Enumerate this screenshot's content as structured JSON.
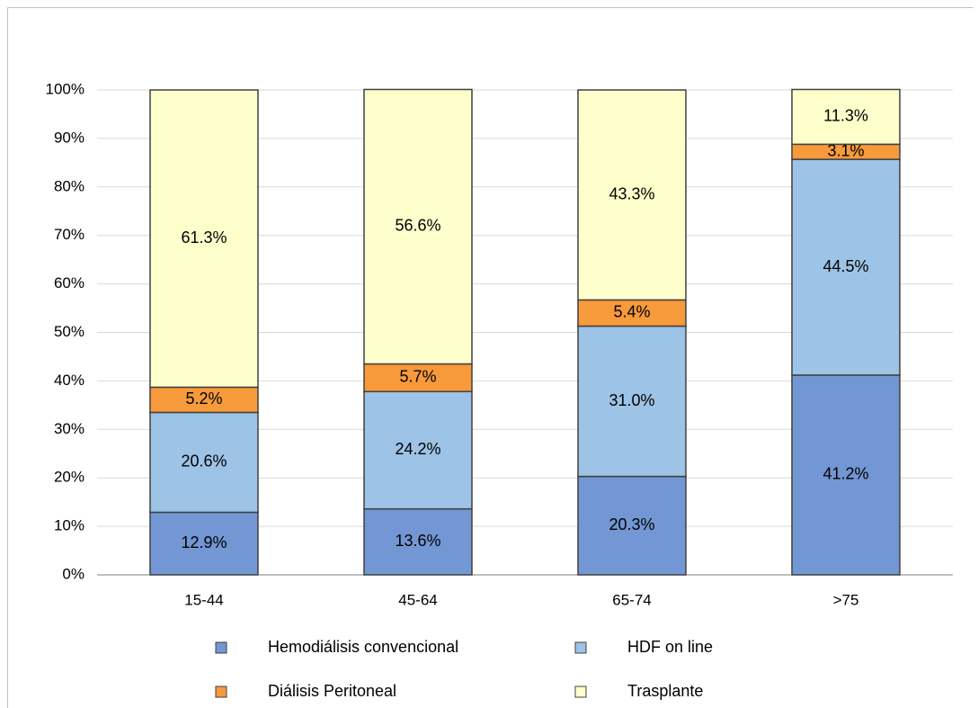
{
  "chart_data": {
    "type": "stacked-bar",
    "categories": [
      "15-44",
      "45-64",
      "65-74",
      ">75"
    ],
    "series": [
      {
        "name": "Hemodiálisis convencional",
        "color": "#7396d4",
        "values": [
          12.9,
          13.6,
          20.3,
          41.2
        ],
        "value_labels": [
          "12.9%",
          "13.6%",
          "20.3%",
          "41.2%"
        ]
      },
      {
        "name": "HDF on line",
        "color": "#9dc3e6",
        "values": [
          20.6,
          24.2,
          31.0,
          44.5
        ],
        "value_labels": [
          "20.6%",
          "24.2%",
          "31.0%",
          "44.5%"
        ]
      },
      {
        "name": "Diálisis Peritoneal",
        "color": "#f79a3c",
        "values": [
          5.2,
          5.7,
          5.4,
          3.1
        ],
        "value_labels": [
          "5.2%",
          "5.7%",
          "5.4%",
          "3.1%"
        ]
      },
      {
        "name": "Trasplante",
        "color": "#ffffcc",
        "values": [
          61.3,
          56.6,
          43.3,
          11.3
        ],
        "value_labels": [
          "61.3%",
          "56.6%",
          "43.3%",
          "11.3%"
        ]
      }
    ],
    "ylim": [
      0,
      100
    ],
    "yticks": [
      {
        "value": 0,
        "label": "0%"
      },
      {
        "value": 10,
        "label": "10%"
      },
      {
        "value": 20,
        "label": "20%"
      },
      {
        "value": 30,
        "label": "30%"
      },
      {
        "value": 40,
        "label": "40%"
      },
      {
        "value": 50,
        "label": "50%"
      },
      {
        "value": 60,
        "label": "60%"
      },
      {
        "value": 70,
        "label": "70%"
      },
      {
        "value": 80,
        "label": "80%"
      },
      {
        "value": 90,
        "label": "90%"
      },
      {
        "value": 100,
        "label": "100%"
      }
    ],
    "grid": true,
    "legend": "bottom"
  }
}
